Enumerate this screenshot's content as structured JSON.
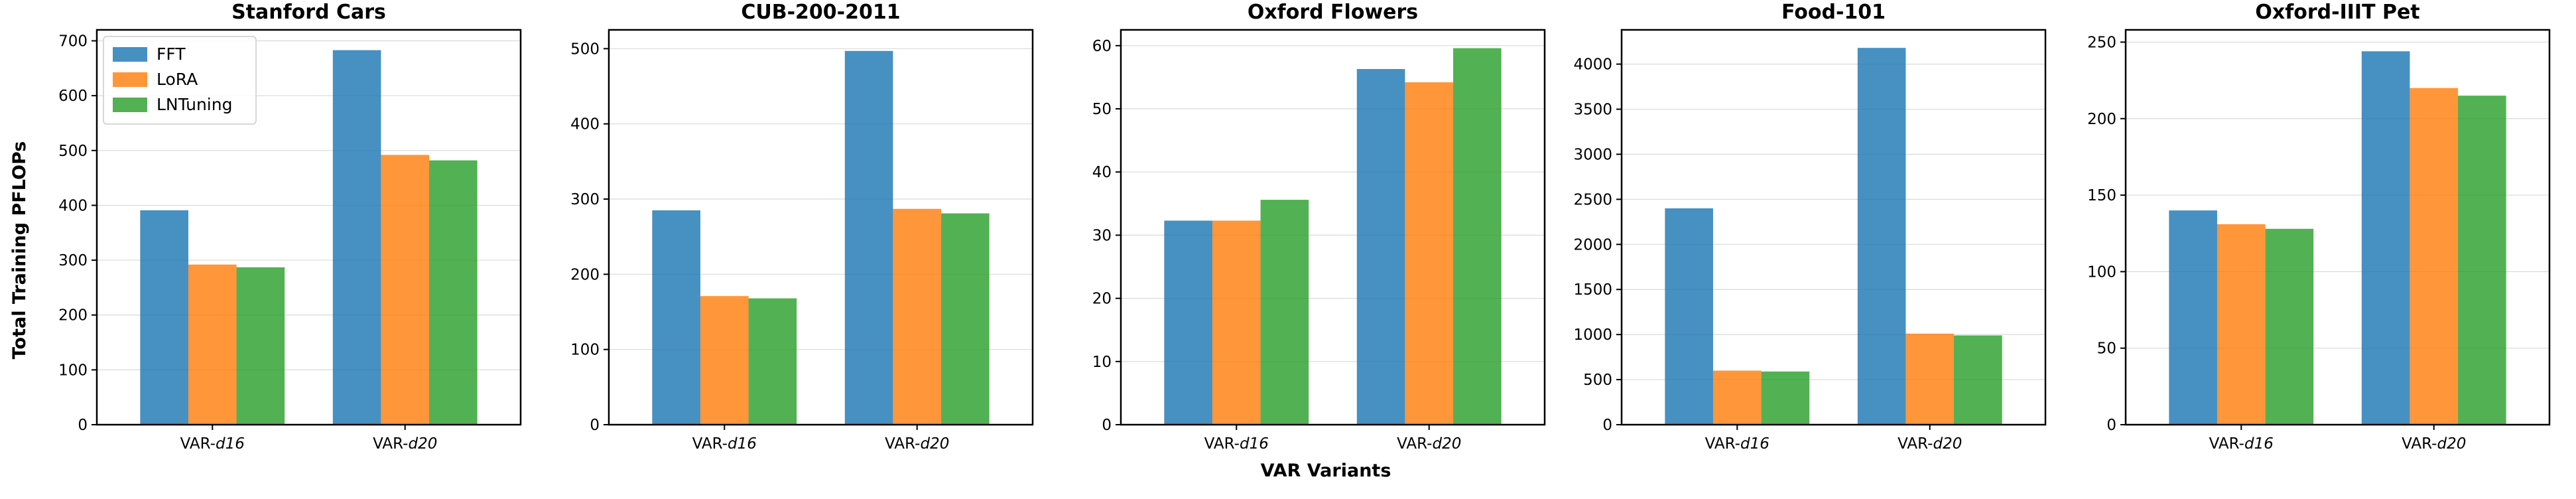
{
  "figure": {
    "xlabel": "VAR Variants",
    "ylabel": "Total Training PFLOPs"
  },
  "legend": {
    "placement": "top-left of first panel",
    "entries": [
      {
        "name": "FFT",
        "color": "#1f77b4"
      },
      {
        "name": "LoRA",
        "color": "#ff7f0e"
      },
      {
        "name": "LNTuning",
        "color": "#2ca02c"
      }
    ]
  },
  "chart_data": [
    {
      "type": "bar",
      "title": "Stanford Cars",
      "categories": [
        "VAR-d16",
        "VAR-d20"
      ],
      "ylim": [
        0,
        720
      ],
      "yticks": [
        0,
        100,
        200,
        300,
        400,
        500,
        600,
        700
      ],
      "series": [
        {
          "name": "FFT",
          "values": [
            391,
            683
          ]
        },
        {
          "name": "LoRA",
          "values": [
            292,
            492
          ]
        },
        {
          "name": "LNTuning",
          "values": [
            287,
            482
          ]
        }
      ]
    },
    {
      "type": "bar",
      "title": "CUB-200-2011",
      "categories": [
        "VAR-d16",
        "VAR-d20"
      ],
      "ylim": [
        0,
        525
      ],
      "yticks": [
        0,
        100,
        200,
        300,
        400,
        500
      ],
      "series": [
        {
          "name": "FFT",
          "values": [
            285,
            497
          ]
        },
        {
          "name": "LoRA",
          "values": [
            171,
            287
          ]
        },
        {
          "name": "LNTuning",
          "values": [
            168,
            281
          ]
        }
      ]
    },
    {
      "type": "bar",
      "title": "Oxford Flowers",
      "categories": [
        "VAR-d16",
        "VAR-d20"
      ],
      "ylim": [
        0,
        62.5
      ],
      "yticks": [
        0,
        10,
        20,
        30,
        40,
        50,
        60
      ],
      "series": [
        {
          "name": "FFT",
          "values": [
            32.3,
            56.3
          ]
        },
        {
          "name": "LoRA",
          "values": [
            32.3,
            54.2
          ]
        },
        {
          "name": "LNTuning",
          "values": [
            35.6,
            59.6
          ]
        }
      ]
    },
    {
      "type": "bar",
      "title": "Food-101",
      "categories": [
        "VAR-d16",
        "VAR-d20"
      ],
      "ylim": [
        0,
        4380
      ],
      "yticks": [
        0,
        500,
        1000,
        1500,
        2000,
        2500,
        3000,
        3500,
        4000
      ],
      "series": [
        {
          "name": "FFT",
          "values": [
            2400,
            4180
          ]
        },
        {
          "name": "LoRA",
          "values": [
            600,
            1010
          ]
        },
        {
          "name": "LNTuning",
          "values": [
            590,
            990
          ]
        }
      ]
    },
    {
      "type": "bar",
      "title": "Oxford-IIIT Pet",
      "categories": [
        "VAR-d16",
        "VAR-d20"
      ],
      "ylim": [
        0,
        258
      ],
      "yticks": [
        0,
        50,
        100,
        150,
        200,
        250
      ],
      "series": [
        {
          "name": "FFT",
          "values": [
            140,
            244
          ]
        },
        {
          "name": "LoRA",
          "values": [
            131,
            220
          ]
        },
        {
          "name": "LNTuning",
          "values": [
            128,
            215
          ]
        }
      ]
    }
  ]
}
